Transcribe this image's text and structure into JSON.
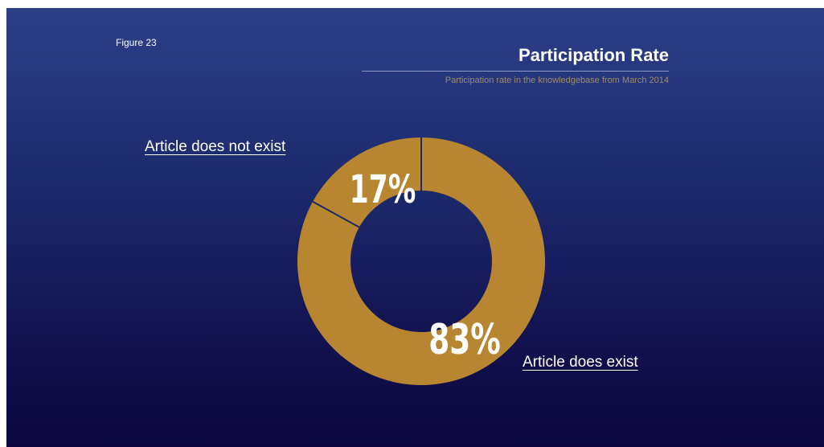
{
  "figure_label": "Figure 23",
  "chart_data": {
    "type": "pie",
    "title": "Participation Rate",
    "subtitle": "Participation rate in the knowledgebase from March 2014",
    "style": "donut",
    "slices": [
      {
        "label": "Article does not exist",
        "value": 17,
        "value_label": "17%"
      },
      {
        "label": "Article does exist",
        "value": 83,
        "value_label": "83%"
      }
    ],
    "colors": {
      "slice": "#b88530",
      "divider": "#1e2864",
      "text": "#ffffff",
      "subtitle": "#9c8a6a"
    }
  }
}
